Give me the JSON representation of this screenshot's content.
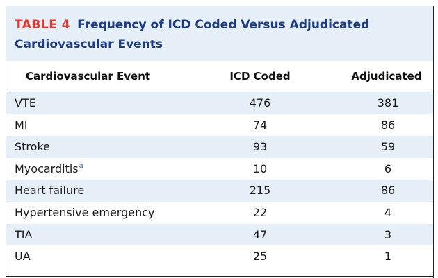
{
  "table": {
    "number": "TABLE 4",
    "title_line1": "Frequency of ICD Coded Versus Adjudicated",
    "title_line2": "Cardiovascular Events",
    "columns": {
      "event": "Cardiovascular Event",
      "icd": "ICD Coded",
      "adjudicated": "Adjudicated"
    },
    "rows": [
      {
        "event": "VTE",
        "footnote": "",
        "icd": "476",
        "adjudicated": "381"
      },
      {
        "event": "MI",
        "footnote": "",
        "icd": "74",
        "adjudicated": "86"
      },
      {
        "event": "Stroke",
        "footnote": "",
        "icd": "93",
        "adjudicated": "59"
      },
      {
        "event": "Myocarditis",
        "footnote": "a",
        "icd": "10",
        "adjudicated": "6"
      },
      {
        "event": "Heart failure",
        "footnote": "",
        "icd": "215",
        "adjudicated": "86"
      },
      {
        "event": "Hypertensive emergency",
        "footnote": "",
        "icd": "22",
        "adjudicated": "4"
      },
      {
        "event": "TIA",
        "footnote": "",
        "icd": "47",
        "adjudicated": "3"
      },
      {
        "event": "UA",
        "footnote": "",
        "icd": "25",
        "adjudicated": "1"
      }
    ]
  },
  "colors": {
    "table_number": "#e3362e",
    "title": "#1d3b82",
    "shade": "#e6eff8",
    "footnote": "#2b5ea8"
  }
}
